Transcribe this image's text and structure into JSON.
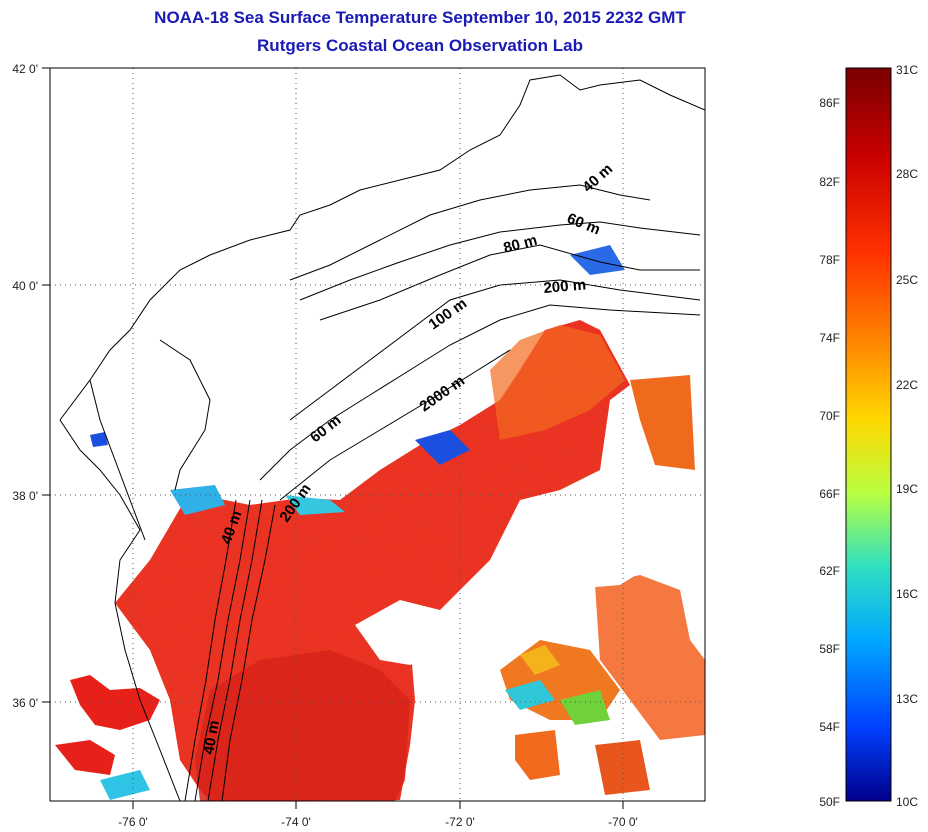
{
  "title": {
    "line1": "NOAA-18 Sea Surface Temperature September 10, 2015 2232 GMT",
    "line2": "Rutgers Coastal Ocean Observation Lab"
  },
  "map": {
    "lat_ticks": [
      "42 0'",
      "40 0'",
      "38 0'",
      "36 0'"
    ],
    "lon_ticks": [
      "-76 0'",
      "-74 0'",
      "-72 0'",
      "-70 0'"
    ],
    "contour_labels": [
      "40 m",
      "60 m",
      "80 m",
      "200 m",
      "100 m",
      "2000 m",
      "60 m",
      "200 m",
      "40 m",
      "40 m"
    ],
    "ocean_colors": {
      "warm": "#f0301a",
      "warmer": "#e8241a",
      "hot": "#d41e14",
      "orange": "#f26a1e",
      "yellow": "#f5c21a",
      "green": "#6fd23a",
      "cyan": "#2fc3e6",
      "blue": "#1a4fe0",
      "navy": "#1212b0"
    }
  },
  "colorbar": {
    "fahrenheit_labels": [
      "86F",
      "82F",
      "78F",
      "74F",
      "70F",
      "66F",
      "62F",
      "58F",
      "54F",
      "50F"
    ],
    "celsius_labels": [
      "31C",
      "28C",
      "25C",
      "22C",
      "19C",
      "16C",
      "13C",
      "10C"
    ],
    "gradient": [
      "#7a0000",
      "#c80000",
      "#ff3000",
      "#ff8a00",
      "#ffd800",
      "#b8ff40",
      "#30e0c0",
      "#00a8ff",
      "#0040ff",
      "#00008a"
    ]
  }
}
